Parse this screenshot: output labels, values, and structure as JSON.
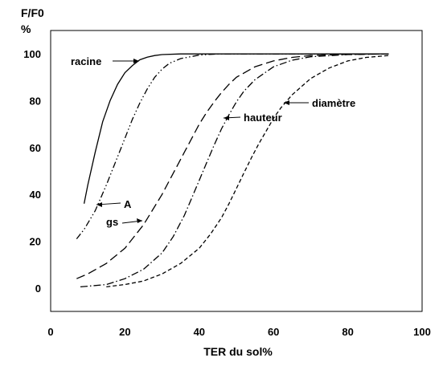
{
  "chart_data": {
    "type": "line",
    "title": "",
    "xlabel": "TER du sol%",
    "ylabel": "F/F0",
    "ylabel_unit": "%",
    "xlim": [
      0,
      100
    ],
    "ylim": [
      -10,
      110
    ],
    "xticks": [
      0,
      20,
      40,
      60,
      80,
      100
    ],
    "yticks": [
      0,
      20,
      40,
      60,
      80,
      100
    ],
    "grid": false,
    "legend": "none",
    "series": [
      {
        "name": "racine",
        "style": "solid",
        "x": [
          9,
          10,
          12,
          14,
          16,
          18,
          20,
          22,
          24,
          26,
          28,
          30,
          35,
          40,
          50,
          60,
          70,
          80,
          91
        ],
        "y": [
          36,
          44,
          58,
          71,
          80,
          87,
          92,
          95,
          97.5,
          98.6,
          99.3,
          99.7,
          100,
          100,
          100,
          100,
          100,
          100,
          100
        ]
      },
      {
        "name": "A",
        "style": "dashdotdot",
        "x": [
          7,
          9,
          12,
          15,
          18,
          20,
          22,
          24,
          26,
          28,
          30,
          32,
          35,
          40,
          45,
          50,
          60,
          70,
          80,
          91
        ],
        "y": [
          21,
          25,
          33,
          44,
          56,
          64,
          72,
          79,
          85,
          90,
          93.5,
          96,
          98,
          99.5,
          100,
          100,
          100,
          100,
          100,
          100
        ]
      },
      {
        "name": "gs",
        "style": "dash",
        "x": [
          7,
          10,
          15,
          20,
          25,
          30,
          32,
          34,
          36,
          38,
          40,
          42,
          44,
          46,
          48,
          50,
          55,
          60,
          65,
          70,
          80,
          91
        ],
        "y": [
          4,
          6,
          10.5,
          17,
          27,
          40,
          46,
          52,
          58,
          64,
          70,
          75,
          79.5,
          83.5,
          87,
          90,
          94.5,
          97,
          98.5,
          99.3,
          99.8,
          100
        ]
      },
      {
        "name": "hauteur",
        "style": "dashdot",
        "x": [
          8,
          15,
          20,
          25,
          30,
          33,
          36,
          38,
          40,
          42,
          44,
          46,
          48,
          50,
          52,
          55,
          60,
          65,
          70,
          80,
          91
        ],
        "y": [
          0.5,
          1.5,
          4,
          8,
          15,
          22,
          31,
          38.5,
          46,
          53.5,
          61,
          68,
          74,
          79.5,
          84,
          89,
          94.5,
          97.3,
          98.8,
          99.7,
          100
        ]
      },
      {
        "name": "diamètre",
        "style": "shortdash",
        "x": [
          15,
          20,
          25,
          30,
          35,
          40,
          43,
          46,
          48,
          50,
          52,
          54,
          56,
          58,
          60,
          62,
          65,
          70,
          75,
          80,
          85,
          91
        ],
        "y": [
          0.5,
          1.5,
          3,
          6,
          10.5,
          17,
          23,
          30,
          36,
          42.5,
          49,
          55.5,
          61.5,
          67,
          72.5,
          77,
          82.5,
          89.5,
          94,
          97,
          98.5,
          99.3
        ]
      }
    ],
    "annotations": [
      {
        "text": "racine",
        "target_series": "racine",
        "x": 25,
        "y": 100
      },
      {
        "text": "A",
        "target_series": "A",
        "x": 13,
        "y": 36
      },
      {
        "text": "gs",
        "target_series": "gs",
        "x": 24,
        "y": 27
      },
      {
        "text": "hauteur",
        "target_series": "hauteur",
        "x": 46,
        "y": 72
      },
      {
        "text": "diamètre",
        "target_series": "diamètre",
        "x": 62,
        "y": 79
      }
    ]
  }
}
